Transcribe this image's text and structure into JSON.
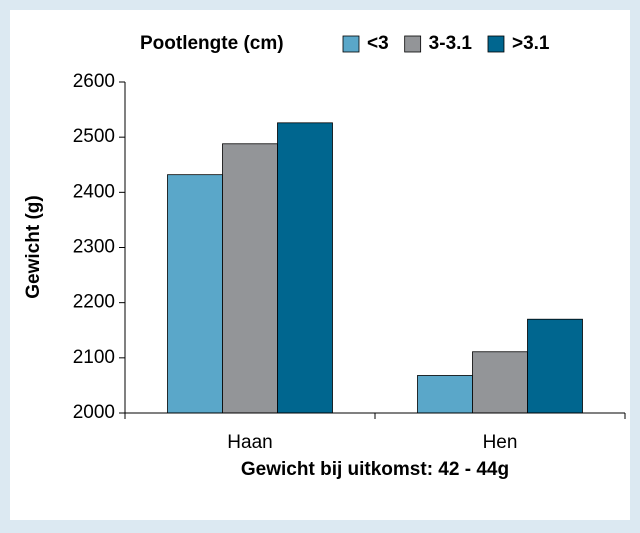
{
  "chart_data": {
    "type": "bar",
    "legend_title": "Pootlengte (cm)",
    "xlabel": "Gewicht bij uitkomst: 42 - 44g",
    "ylabel": "Gewicht (g)",
    "categories": [
      "Haan",
      "Hen"
    ],
    "series": [
      {
        "name": "<3",
        "color": "#5aa7c9",
        "values": [
          2432,
          2068
        ]
      },
      {
        "name": "3-3.1",
        "color": "#939598",
        "values": [
          2488,
          2111
        ]
      },
      {
        "name": ">3.1",
        "color": "#00668f",
        "values": [
          2526,
          2170
        ]
      }
    ],
    "ylim": [
      2000,
      2600
    ],
    "yticks": [
      2000,
      2100,
      2200,
      2300,
      2400,
      2500,
      2600
    ],
    "legend": "top"
  }
}
